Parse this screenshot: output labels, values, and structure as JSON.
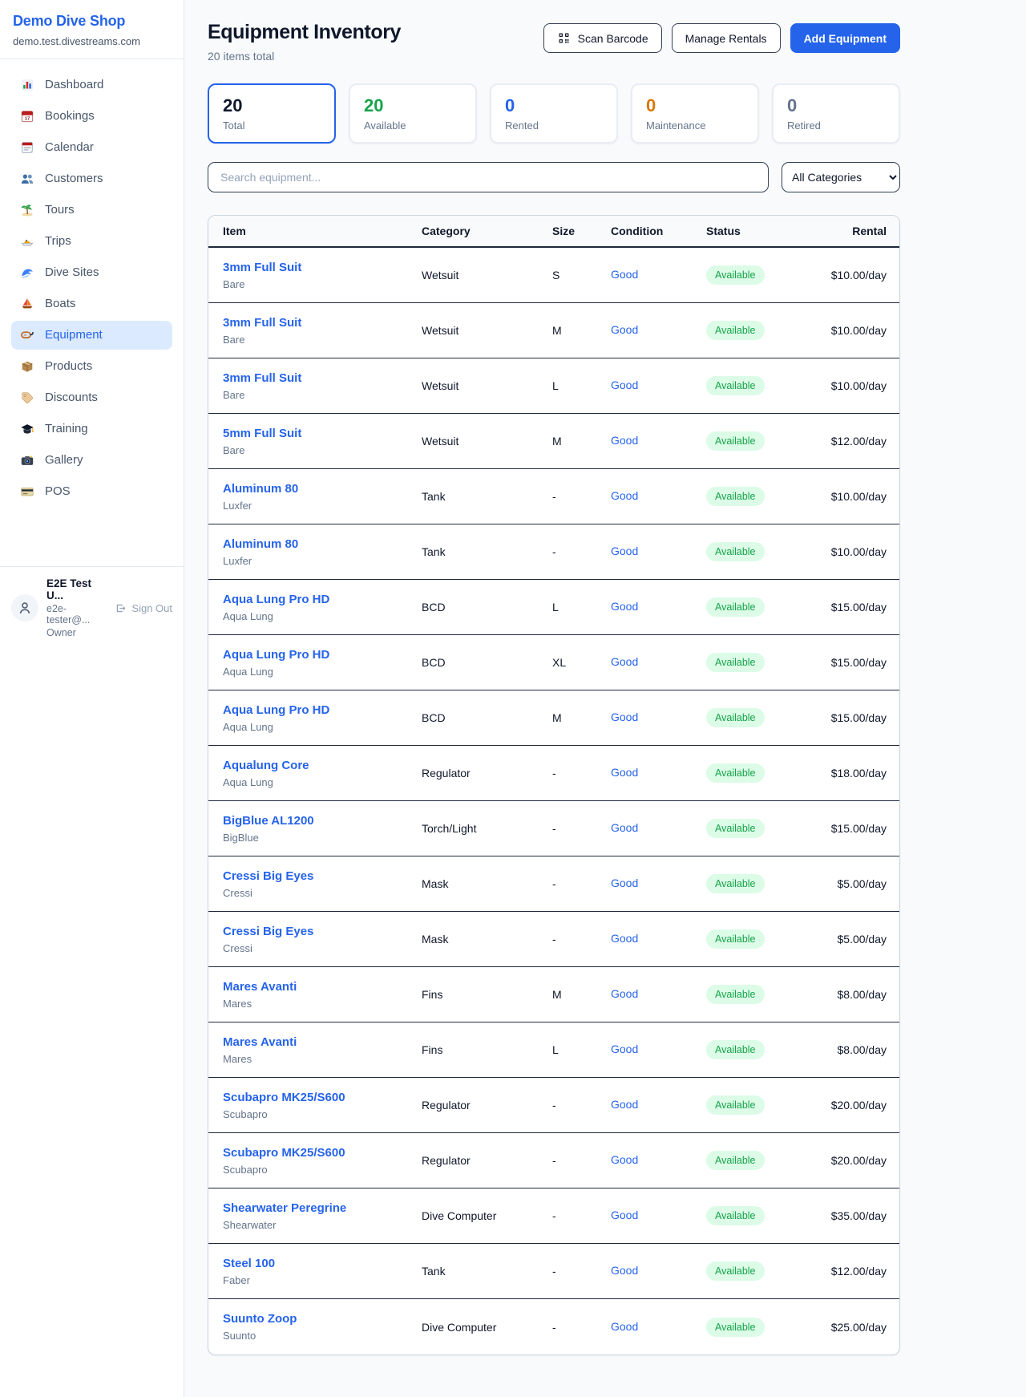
{
  "sidebar": {
    "title": "Demo Dive Shop",
    "subdomain": "demo.test.divestreams.com",
    "items": [
      {
        "label": "Dashboard",
        "icon": "dashboard",
        "active": false
      },
      {
        "label": "Bookings",
        "icon": "bookings",
        "active": false
      },
      {
        "label": "Calendar",
        "icon": "calendar",
        "active": false
      },
      {
        "label": "Customers",
        "icon": "customers",
        "active": false
      },
      {
        "label": "Tours",
        "icon": "tours",
        "active": false
      },
      {
        "label": "Trips",
        "icon": "trips",
        "active": false
      },
      {
        "label": "Dive Sites",
        "icon": "dive-sites",
        "active": false
      },
      {
        "label": "Boats",
        "icon": "boats",
        "active": false
      },
      {
        "label": "Equipment",
        "icon": "equipment",
        "active": true
      },
      {
        "label": "Products",
        "icon": "products",
        "active": false
      },
      {
        "label": "Discounts",
        "icon": "discounts",
        "active": false
      },
      {
        "label": "Training",
        "icon": "training",
        "active": false
      },
      {
        "label": "Gallery",
        "icon": "gallery",
        "active": false
      },
      {
        "label": "POS",
        "icon": "pos",
        "active": false
      }
    ],
    "user": {
      "name": "E2E Test U...",
      "email": "e2e-tester@...",
      "role": "Owner",
      "signout_label": "Sign Out"
    }
  },
  "header": {
    "title": "Equipment Inventory",
    "subtitle": "20 items total",
    "scan_button": "Scan Barcode",
    "manage_button": "Manage Rentals",
    "add_button": "Add Equipment"
  },
  "stats": [
    {
      "value": "20",
      "label": "Total",
      "color": "#0f172a",
      "active": true
    },
    {
      "value": "20",
      "label": "Available",
      "color": "#16a34a",
      "active": false
    },
    {
      "value": "0",
      "label": "Rented",
      "color": "#2563eb",
      "active": false
    },
    {
      "value": "0",
      "label": "Maintenance",
      "color": "#d97706",
      "active": false
    },
    {
      "value": "0",
      "label": "Retired",
      "color": "#64748b",
      "active": false
    }
  ],
  "filters": {
    "search_placeholder": "Search equipment...",
    "category_selected": "All Categories"
  },
  "table": {
    "columns": [
      "Item",
      "Category",
      "Size",
      "Condition",
      "Status",
      "Rental"
    ],
    "rows": [
      {
        "name": "3mm Full Suit",
        "brand": "Bare",
        "category": "Wetsuit",
        "size": "S",
        "condition": "Good",
        "status": "Available",
        "rental": "$10.00/day"
      },
      {
        "name": "3mm Full Suit",
        "brand": "Bare",
        "category": "Wetsuit",
        "size": "M",
        "condition": "Good",
        "status": "Available",
        "rental": "$10.00/day"
      },
      {
        "name": "3mm Full Suit",
        "brand": "Bare",
        "category": "Wetsuit",
        "size": "L",
        "condition": "Good",
        "status": "Available",
        "rental": "$10.00/day"
      },
      {
        "name": "5mm Full Suit",
        "brand": "Bare",
        "category": "Wetsuit",
        "size": "M",
        "condition": "Good",
        "status": "Available",
        "rental": "$12.00/day"
      },
      {
        "name": "Aluminum 80",
        "brand": "Luxfer",
        "category": "Tank",
        "size": "-",
        "condition": "Good",
        "status": "Available",
        "rental": "$10.00/day"
      },
      {
        "name": "Aluminum 80",
        "brand": "Luxfer",
        "category": "Tank",
        "size": "-",
        "condition": "Good",
        "status": "Available",
        "rental": "$10.00/day"
      },
      {
        "name": "Aqua Lung Pro HD",
        "brand": "Aqua Lung",
        "category": "BCD",
        "size": "L",
        "condition": "Good",
        "status": "Available",
        "rental": "$15.00/day"
      },
      {
        "name": "Aqua Lung Pro HD",
        "brand": "Aqua Lung",
        "category": "BCD",
        "size": "XL",
        "condition": "Good",
        "status": "Available",
        "rental": "$15.00/day"
      },
      {
        "name": "Aqua Lung Pro HD",
        "brand": "Aqua Lung",
        "category": "BCD",
        "size": "M",
        "condition": "Good",
        "status": "Available",
        "rental": "$15.00/day"
      },
      {
        "name": "Aqualung Core",
        "brand": "Aqua Lung",
        "category": "Regulator",
        "size": "-",
        "condition": "Good",
        "status": "Available",
        "rental": "$18.00/day"
      },
      {
        "name": "BigBlue AL1200",
        "brand": "BigBlue",
        "category": "Torch/Light",
        "size": "-",
        "condition": "Good",
        "status": "Available",
        "rental": "$15.00/day"
      },
      {
        "name": "Cressi Big Eyes",
        "brand": "Cressi",
        "category": "Mask",
        "size": "-",
        "condition": "Good",
        "status": "Available",
        "rental": "$5.00/day"
      },
      {
        "name": "Cressi Big Eyes",
        "brand": "Cressi",
        "category": "Mask",
        "size": "-",
        "condition": "Good",
        "status": "Available",
        "rental": "$5.00/day"
      },
      {
        "name": "Mares Avanti",
        "brand": "Mares",
        "category": "Fins",
        "size": "M",
        "condition": "Good",
        "status": "Available",
        "rental": "$8.00/day"
      },
      {
        "name": "Mares Avanti",
        "brand": "Mares",
        "category": "Fins",
        "size": "L",
        "condition": "Good",
        "status": "Available",
        "rental": "$8.00/day"
      },
      {
        "name": "Scubapro MK25/S600",
        "brand": "Scubapro",
        "category": "Regulator",
        "size": "-",
        "condition": "Good",
        "status": "Available",
        "rental": "$20.00/day"
      },
      {
        "name": "Scubapro MK25/S600",
        "brand": "Scubapro",
        "category": "Regulator",
        "size": "-",
        "condition": "Good",
        "status": "Available",
        "rental": "$20.00/day"
      },
      {
        "name": "Shearwater Peregrine",
        "brand": "Shearwater",
        "category": "Dive Computer",
        "size": "-",
        "condition": "Good",
        "status": "Available",
        "rental": "$35.00/day"
      },
      {
        "name": "Steel 100",
        "brand": "Faber",
        "category": "Tank",
        "size": "-",
        "condition": "Good",
        "status": "Available",
        "rental": "$12.00/day"
      },
      {
        "name": "Suunto Zoop",
        "brand": "Suunto",
        "category": "Dive Computer",
        "size": "-",
        "condition": "Good",
        "status": "Available",
        "rental": "$25.00/day"
      }
    ]
  },
  "colors": {
    "accent_blue": "#2563eb",
    "active_nav_bg": "#dbeafe",
    "available_green": "#16a34a",
    "badge_bg": "#dcfce7",
    "rented_blue": "#2563eb",
    "maintenance_orange": "#d97706",
    "retired_gray": "#64748b",
    "row_border_dark": "#1e293b",
    "page_bg": "#f8fafc"
  }
}
